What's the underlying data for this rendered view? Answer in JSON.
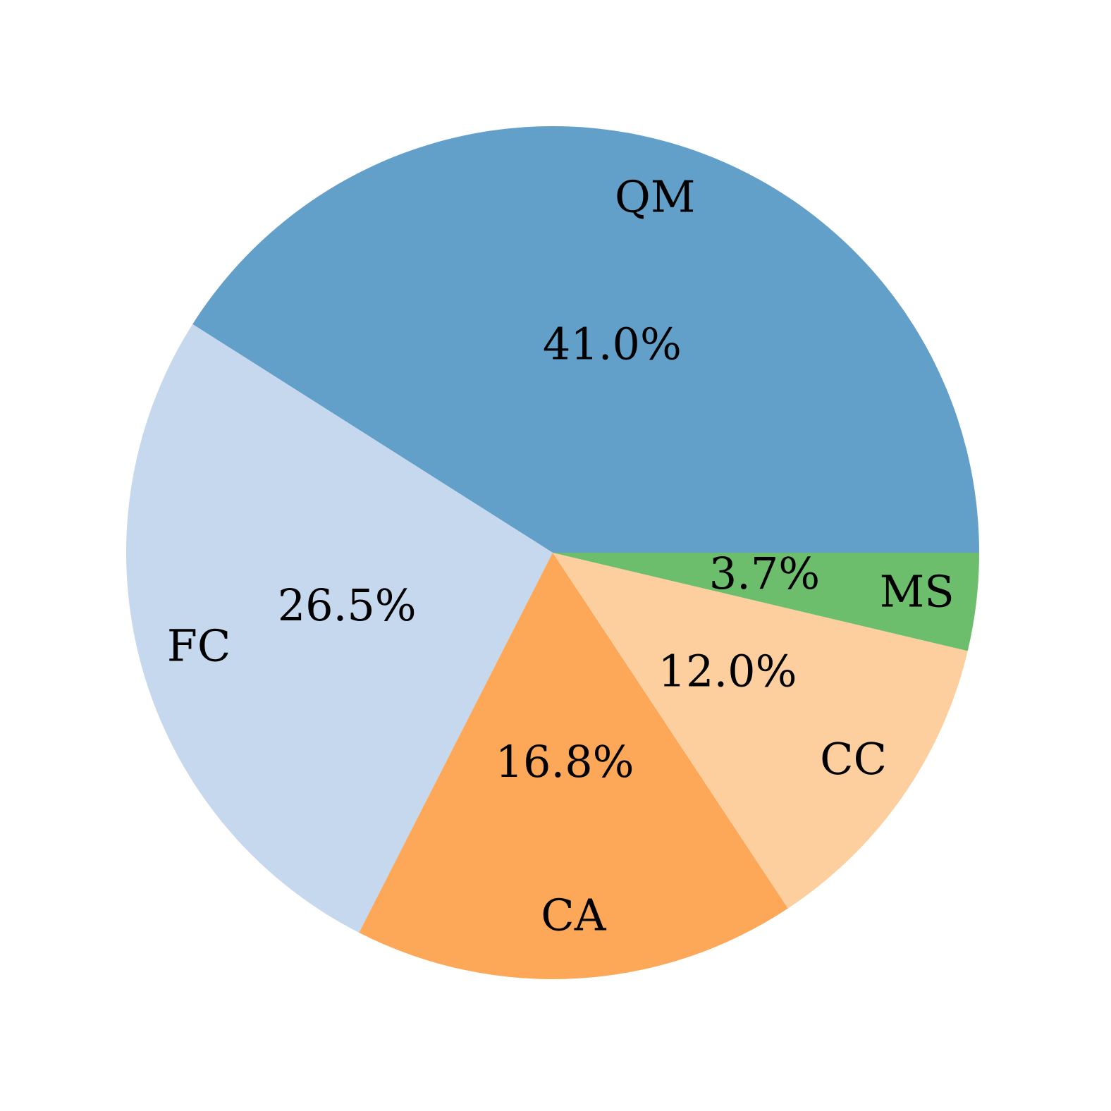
{
  "chart_data": {
    "type": "pie",
    "categories": [
      "QM",
      "FC",
      "CA",
      "CC",
      "MS"
    ],
    "values": [
      41.0,
      26.5,
      16.8,
      12.0,
      3.7
    ],
    "value_labels": [
      "41.0%",
      "26.5%",
      "16.8%",
      "12.0%",
      "3.7%"
    ],
    "colors": [
      "#62a0ca",
      "#c6d8ee",
      "#fda758",
      "#fdcf9f",
      "#6cbe6c"
    ]
  }
}
